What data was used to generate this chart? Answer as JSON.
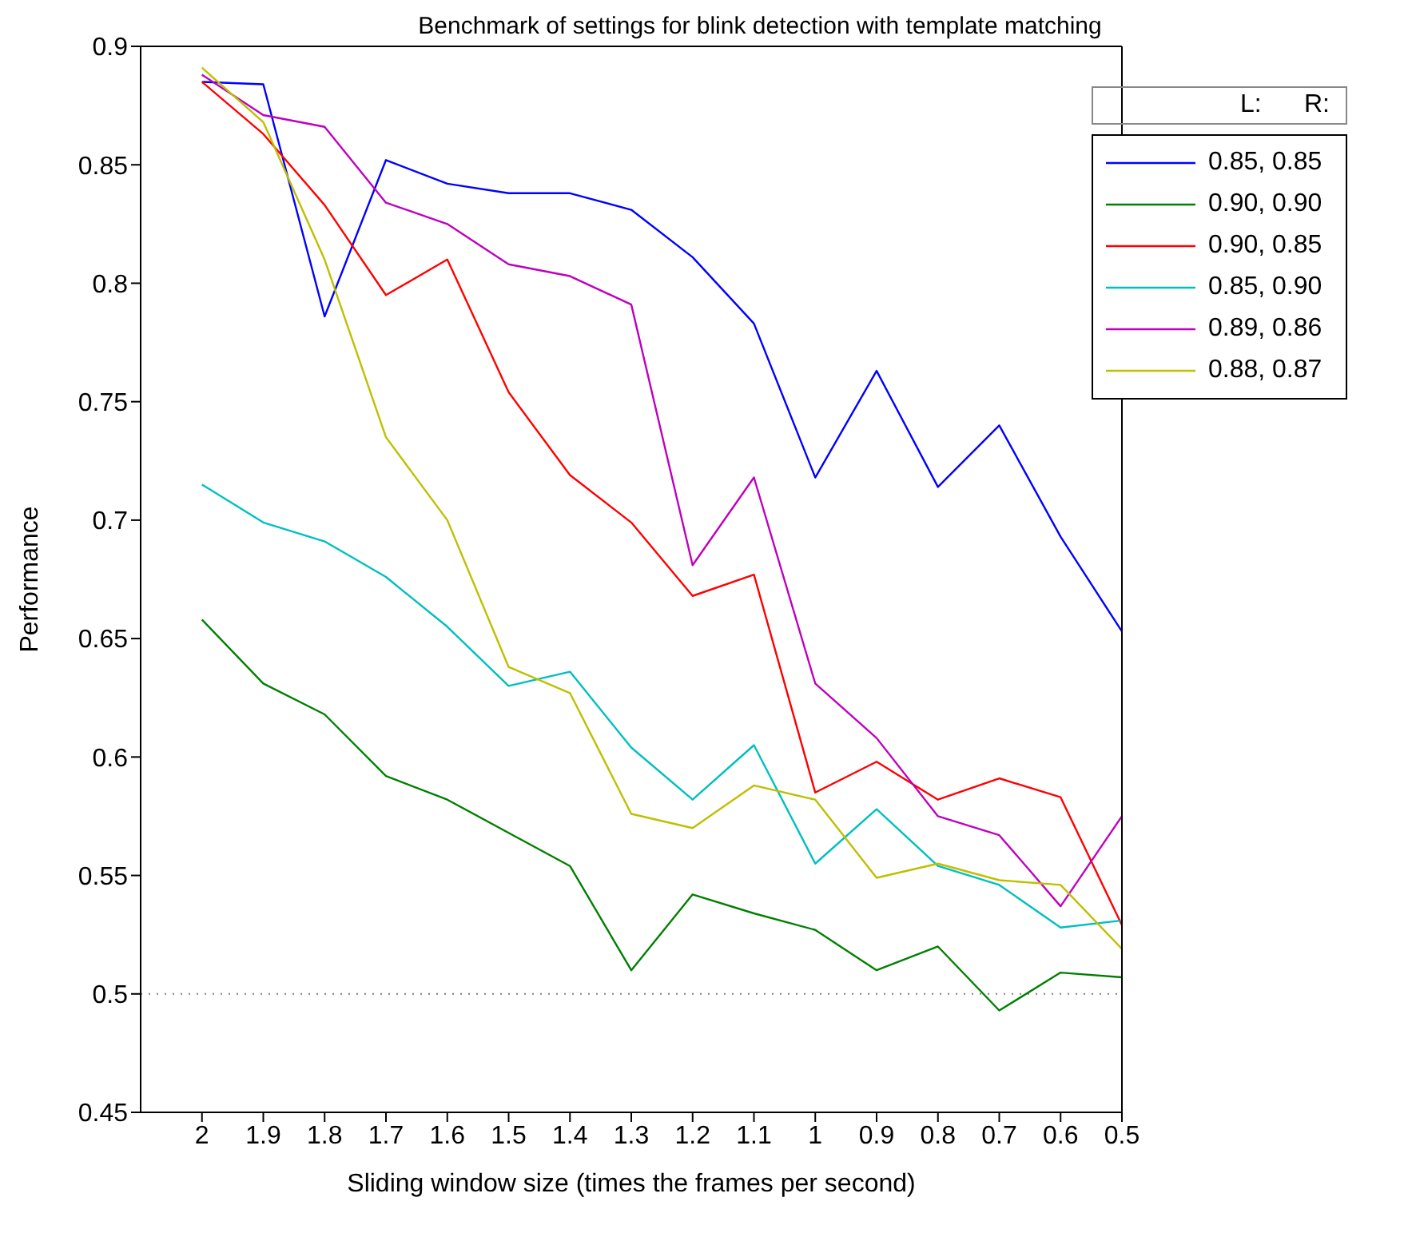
{
  "chart_data": {
    "type": "line",
    "title": "Benchmark of settings for blink detection with template matching",
    "xlabel": "Sliding window size (times the frames per second)",
    "ylabel": "Performance",
    "legend_title": "L:      R:",
    "legend": "top right",
    "marker": "none",
    "line_style": "solid",
    "x": [
      2,
      1.9,
      1.8,
      1.7,
      1.6,
      1.5,
      1.4,
      1.3,
      1.2,
      1.1,
      1,
      0.9,
      0.8,
      0.7,
      0.6,
      0.5
    ],
    "xlim": [
      2.1,
      0.5
    ],
    "xticks": [
      2,
      1.9,
      1.8,
      1.7,
      1.6,
      1.5,
      1.4,
      1.3,
      1.2,
      1.1,
      1,
      0.9,
      0.8,
      0.7,
      0.6,
      0.5
    ],
    "ylim": [
      0.45,
      0.9
    ],
    "yticks": [
      0.45,
      0.5,
      0.55,
      0.6,
      0.65,
      0.7,
      0.75,
      0.8,
      0.85,
      0.9
    ],
    "ref_lines": [
      {
        "axis": "y",
        "value": 0.5,
        "color": "#808080",
        "line_style": "dotted"
      }
    ],
    "series": [
      {
        "name": "0.85, 0.85",
        "color": "#0000ff",
        "values": [
          0.885,
          0.884,
          0.786,
          0.852,
          0.842,
          0.838,
          0.838,
          0.831,
          0.811,
          0.783,
          0.718,
          0.763,
          0.714,
          0.74,
          0.693,
          0.653
        ]
      },
      {
        "name": "0.90, 0.90",
        "color": "#008000",
        "values": [
          0.658,
          0.631,
          0.618,
          0.592,
          0.582,
          0.568,
          0.554,
          0.51,
          0.542,
          0.534,
          0.527,
          0.51,
          0.52,
          0.493,
          0.509,
          0.507
        ]
      },
      {
        "name": "0.90, 0.85",
        "color": "#ff0000",
        "values": [
          0.885,
          0.863,
          0.833,
          0.795,
          0.81,
          0.754,
          0.719,
          0.699,
          0.668,
          0.677,
          0.585,
          0.598,
          0.582,
          0.591,
          0.583,
          0.529
        ]
      },
      {
        "name": "0.85, 0.90",
        "color": "#00bfbf",
        "values": [
          0.715,
          0.699,
          0.691,
          0.676,
          0.655,
          0.63,
          0.636,
          0.604,
          0.582,
          0.605,
          0.555,
          0.578,
          0.554,
          0.546,
          0.528,
          0.531
        ]
      },
      {
        "name": "0.89, 0.86",
        "color": "#bf00bf",
        "values": [
          0.888,
          0.871,
          0.866,
          0.834,
          0.825,
          0.808,
          0.803,
          0.791,
          0.681,
          0.718,
          0.631,
          0.608,
          0.575,
          0.567,
          0.537,
          0.575
        ]
      },
      {
        "name": "0.88, 0.87",
        "color": "#bfbf00",
        "values": [
          0.891,
          0.868,
          0.81,
          0.735,
          0.7,
          0.638,
          0.627,
          0.576,
          0.57,
          0.588,
          0.582,
          0.549,
          0.555,
          0.548,
          0.546,
          0.519
        ]
      }
    ]
  }
}
